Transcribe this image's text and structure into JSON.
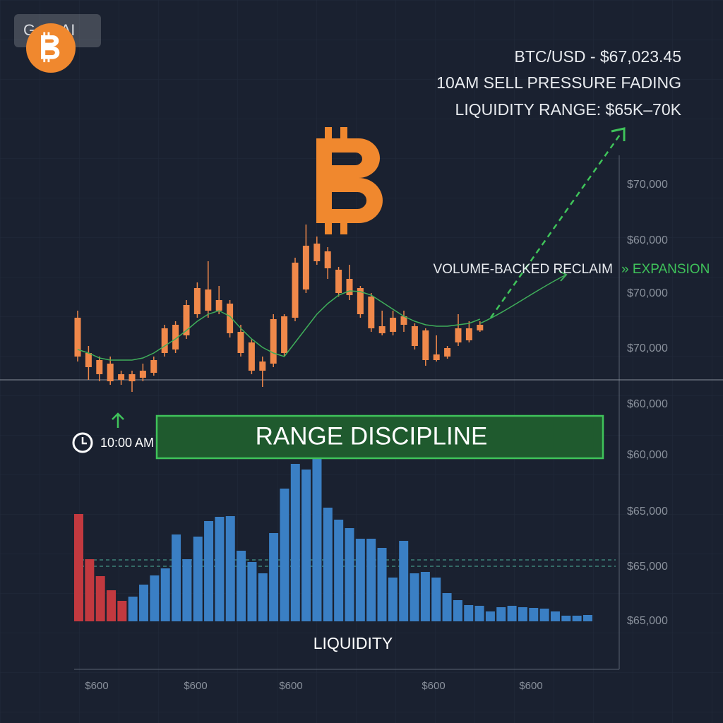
{
  "header": {
    "badge": "Gate AI",
    "lines": [
      "BTC/USD - $67,023.45",
      "10AM SELL PRESSURE FADING",
      "LIQUIDITY RANGE: $65K–70K"
    ]
  },
  "chart_data": {
    "type": "candlestick",
    "ylim": [
      0,
      100
    ],
    "color": "#f0884a",
    "open": [
      22,
      16,
      12,
      8,
      8.8,
      8,
      10,
      12.8,
      24,
      26,
      34,
      46,
      48,
      48,
      35.2,
      24,
      14,
      14,
      18,
      24,
      44,
      60,
      76,
      72,
      58,
      56.8,
      46,
      38,
      35.2,
      36,
      40,
      28,
      20,
      20,
      22,
      30,
      31.2,
      36.8
    ],
    "close": [
      44,
      24,
      20,
      18,
      12,
      12,
      14,
      20,
      38,
      40,
      51.2,
      60.8,
      60,
      54,
      52,
      36,
      30,
      19.2,
      43.2,
      44.8,
      75.2,
      84.8,
      86,
      81.6,
      71.2,
      66,
      60.8,
      56,
      39.2,
      44,
      44.8,
      39.2,
      36.8,
      23.2,
      26.8,
      38,
      38,
      40
    ],
    "high": [
      48,
      28,
      22,
      22,
      14,
      14,
      18,
      22,
      40,
      42,
      54,
      64,
      76,
      62,
      54,
      40,
      32,
      22,
      46,
      46,
      78,
      96.8,
      90,
      84,
      72.8,
      74,
      62,
      58,
      48,
      48,
      48,
      40.8,
      38,
      34,
      28,
      46,
      42,
      42
    ],
    "low": [
      19.2,
      8.8,
      8,
      6,
      6,
      2,
      8,
      11.2,
      22,
      24,
      32,
      44,
      44,
      46,
      32.8,
      22,
      12,
      4.8,
      16,
      22,
      42,
      58,
      74,
      66,
      56,
      54,
      44,
      36,
      34,
      34,
      36,
      26,
      16.8,
      19.2,
      20.8,
      28,
      30,
      36
    ],
    "moving_average": {
      "color": "#3fae5a",
      "values": [
        26,
        24,
        21.2,
        20,
        20,
        20,
        21.2,
        24,
        28,
        32,
        36.8,
        42,
        46,
        48,
        44.8,
        38,
        32,
        27.2,
        24,
        22,
        30,
        38,
        46,
        52,
        56.8,
        59.2,
        58.8,
        56.8,
        52.8,
        48.8,
        44.8,
        42,
        40,
        39.2,
        39.2,
        40,
        40.8,
        43.2
      ]
    },
    "volume": {
      "ylim": [
        0,
        250
      ],
      "values": [
        152,
        88,
        64,
        44,
        29,
        35,
        52,
        65,
        75,
        123,
        88,
        120,
        142,
        148,
        149,
        100,
        84,
        68,
        125,
        188,
        223,
        215,
        233,
        161,
        144,
        132,
        117,
        117,
        104,
        62,
        114,
        68,
        70,
        62,
        40,
        30,
        23,
        22,
        14,
        20,
        22,
        20,
        19,
        18,
        14,
        8,
        8,
        9
      ],
      "colors": [
        "#c2393f",
        "#c2393f",
        "#c2393f",
        "#c2393f",
        "#c2393f",
        "#3a7fc4",
        "#3a7fc4",
        "#3a7fc4",
        "#3a7fc4",
        "#3a7fc4",
        "#3a7fc4",
        "#3a7fc4",
        "#3a7fc4",
        "#3a7fc4",
        "#3a7fc4",
        "#3a7fc4",
        "#3a7fc4",
        "#3a7fc4",
        "#3a7fc4",
        "#3a7fc4",
        "#3a7fc4",
        "#3a7fc4",
        "#3a7fc4",
        "#3a7fc4",
        "#3a7fc4",
        "#3a7fc4",
        "#3a7fc4",
        "#3a7fc4",
        "#3a7fc4",
        "#3a7fc4",
        "#3a7fc4",
        "#3a7fc4",
        "#3a7fc4",
        "#3a7fc4",
        "#3a7fc4",
        "#3a7fc4",
        "#3a7fc4",
        "#3a7fc4",
        "#3a7fc4",
        "#3a7fc4",
        "#3a7fc4",
        "#3a7fc4",
        "#3a7fc4",
        "#3a7fc4",
        "#3a7fc4",
        "#3a7fc4",
        "#3a7fc4",
        "#3a7fc4"
      ]
    },
    "volume_label": "LIQUIDITY",
    "right_axis_labels": [
      "$70,000",
      "$60,000",
      "$70,000",
      "$70,000",
      "$60,000",
      "$60,000",
      "$65,000",
      "$65,000",
      "$65,000"
    ],
    "bottom_axis_labels": [
      "$600",
      "$600",
      "$600",
      "$600",
      "$600"
    ],
    "annotations": {
      "reclaim": "VOLUME-BACKED RECLAIM",
      "expansion": "» EXPANSION",
      "time": "10:00 AM",
      "banner": "RANGE DISCIPLINE"
    }
  }
}
